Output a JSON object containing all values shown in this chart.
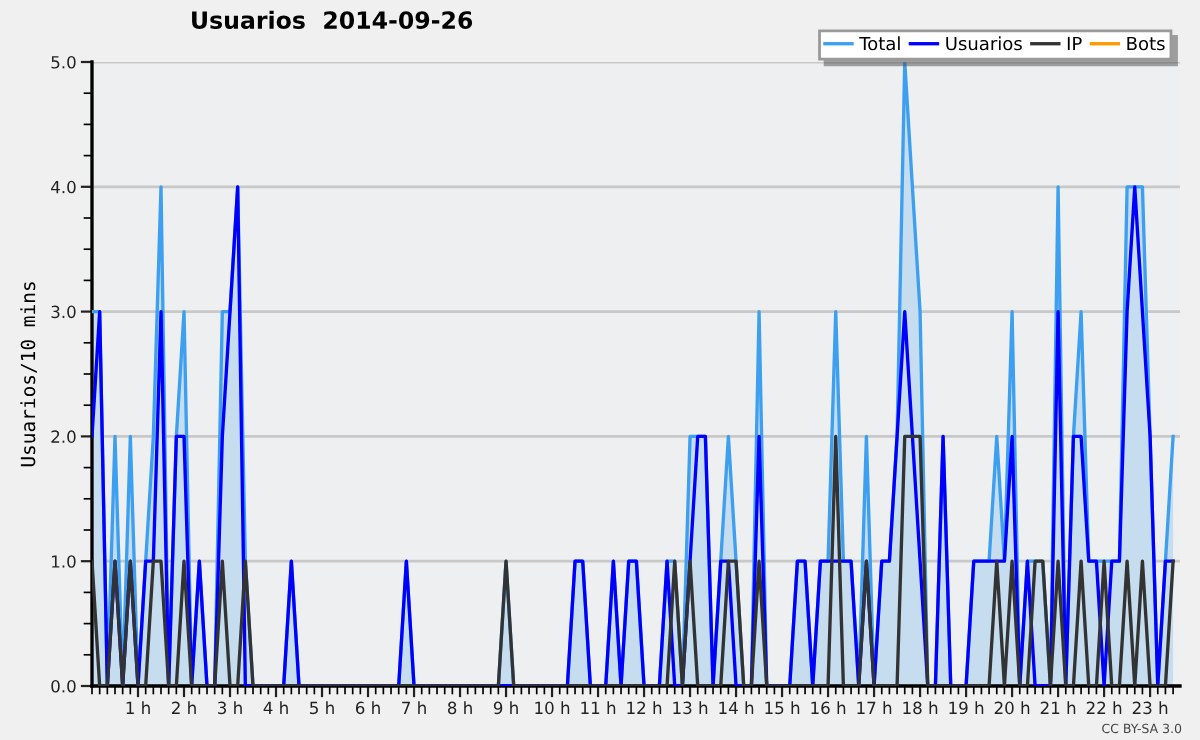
{
  "chart_data": {
    "type": "line",
    "title": "Usuarios  2014-09-26",
    "ylabel": "Usuarios/10 mins",
    "x": [
      0,
      0.1667,
      0.3333,
      0.5,
      0.6667,
      0.8333,
      1,
      1.1667,
      1.3333,
      1.5,
      1.6667,
      1.8333,
      2,
      2.1667,
      2.3333,
      2.5,
      2.6667,
      2.8333,
      3,
      3.1667,
      3.3333,
      3.5,
      3.6667,
      3.8333,
      4,
      4.1667,
      4.3333,
      4.5,
      4.6667,
      4.8333,
      5,
      5.1667,
      5.3333,
      5.5,
      5.6667,
      5.8333,
      6,
      6.1667,
      6.3333,
      6.5,
      6.6667,
      6.8333,
      7,
      7.1667,
      7.3333,
      7.5,
      7.6667,
      7.8333,
      8,
      8.1667,
      8.3333,
      8.5,
      8.6667,
      8.8333,
      9,
      9.1667,
      9.3333,
      9.5,
      9.6667,
      9.8333,
      10,
      10.1667,
      10.3333,
      10.5,
      10.6667,
      10.8333,
      11,
      11.1667,
      11.3333,
      11.5,
      11.6667,
      11.8333,
      12,
      12.1667,
      12.3333,
      12.5,
      12.6667,
      12.8333,
      13,
      13.1667,
      13.3333,
      13.5,
      13.6667,
      13.8333,
      14,
      14.1667,
      14.3333,
      14.5,
      14.6667,
      14.8333,
      15,
      15.1667,
      15.3333,
      15.5,
      15.6667,
      15.8333,
      16,
      16.1667,
      16.3333,
      16.5,
      16.6667,
      16.8333,
      17,
      17.1667,
      17.3333,
      17.5,
      17.6667,
      17.8333,
      18,
      18.1667,
      18.3333,
      18.5,
      18.6667,
      18.8333,
      19,
      19.1667,
      19.3333,
      19.5,
      19.6667,
      19.8333,
      20,
      20.1667,
      20.3333,
      20.5,
      20.6667,
      20.8333,
      21,
      21.1667,
      21.3333,
      21.5,
      21.6667,
      21.8333,
      22,
      22.1667,
      22.3333,
      22.5,
      22.6667,
      22.8333,
      23,
      23.1667,
      23.3333,
      23.5
    ],
    "series": [
      {
        "name": "Bots",
        "color": "#ff9900",
        "values": [
          null,
          null,
          null,
          null,
          null,
          null,
          null,
          null,
          null,
          null,
          null,
          null,
          null,
          null,
          null,
          null,
          null,
          null,
          null,
          null,
          null,
          null,
          null,
          null,
          null,
          null,
          null,
          null,
          null,
          null,
          null,
          null,
          null,
          null,
          null,
          null,
          null,
          null,
          null,
          null,
          null,
          null,
          null,
          null,
          null,
          null,
          null,
          null,
          null,
          null,
          null,
          null,
          null,
          null,
          null,
          null,
          null,
          null,
          null,
          null,
          null,
          null,
          null,
          null,
          null,
          null,
          null,
          null,
          null,
          null,
          null,
          null,
          null,
          null,
          null,
          null,
          null,
          null,
          null,
          null,
          null,
          null,
          null,
          null,
          null,
          null,
          null,
          null,
          null,
          null,
          null,
          null,
          null,
          null,
          null,
          null,
          null,
          null,
          null,
          null,
          null,
          null,
          null,
          null,
          null,
          null,
          null,
          null,
          null,
          null,
          null,
          null,
          null,
          null,
          null,
          null,
          null,
          null,
          null,
          null,
          null,
          null,
          null,
          null,
          null,
          null,
          null,
          null,
          null,
          null,
          null,
          null,
          null,
          null,
          null,
          null,
          null,
          null,
          null,
          null,
          null,
          null
        ]
      },
      {
        "name": "Total",
        "type": "area",
        "color": "#3d9ff0",
        "values": [
          3,
          3,
          0,
          2,
          0,
          2,
          0,
          1,
          2,
          4,
          0,
          2,
          3,
          0,
          1,
          0,
          0,
          3,
          3,
          4,
          1,
          0,
          0,
          0,
          0,
          0,
          1,
          0,
          0,
          0,
          0,
          0,
          0,
          0,
          0,
          0,
          0,
          0,
          0,
          0,
          0,
          1,
          0,
          0,
          0,
          0,
          0,
          0,
          0,
          0,
          0,
          0,
          0,
          0,
          1,
          0,
          0,
          0,
          0,
          0,
          0,
          0,
          0,
          1,
          1,
          0,
          0,
          0,
          1,
          0,
          1,
          1,
          0,
          0,
          0,
          1,
          1,
          0,
          2,
          2,
          2,
          0,
          1,
          2,
          1,
          0,
          0,
          3,
          0,
          0,
          0,
          0,
          1,
          1,
          0,
          1,
          1,
          3,
          1,
          1,
          0,
          2,
          0,
          1,
          1,
          2,
          5,
          4,
          3,
          0,
          0,
          2,
          0,
          0,
          0,
          1,
          1,
          1,
          2,
          1,
          3,
          0,
          1,
          1,
          1,
          0,
          4,
          0,
          2,
          3,
          1,
          1,
          1,
          1,
          1,
          4,
          4,
          4,
          2,
          0,
          1,
          2
        ]
      },
      {
        "name": "Usuarios",
        "color": "#0000ff",
        "values": [
          2,
          3,
          0,
          1,
          0,
          1,
          0,
          1,
          1,
          3,
          0,
          2,
          2,
          0,
          1,
          0,
          0,
          2,
          3,
          4,
          0,
          0,
          0,
          0,
          0,
          0,
          1,
          0,
          0,
          0,
          0,
          0,
          0,
          0,
          0,
          0,
          0,
          0,
          0,
          0,
          0,
          1,
          0,
          0,
          0,
          0,
          0,
          0,
          0,
          0,
          0,
          0,
          0,
          0,
          0,
          0,
          0,
          0,
          0,
          0,
          0,
          0,
          0,
          1,
          1,
          0,
          0,
          0,
          1,
          0,
          1,
          1,
          0,
          0,
          0,
          1,
          0,
          0,
          1,
          2,
          2,
          0,
          1,
          1,
          0,
          0,
          0,
          2,
          0,
          0,
          0,
          0,
          1,
          1,
          0,
          1,
          1,
          1,
          1,
          1,
          0,
          1,
          0,
          1,
          1,
          2,
          3,
          2,
          1,
          0,
          0,
          2,
          0,
          0,
          0,
          1,
          1,
          1,
          1,
          1,
          2,
          0,
          1,
          0,
          0,
          0,
          3,
          0,
          2,
          2,
          1,
          1,
          0,
          1,
          1,
          3,
          4,
          3,
          2,
          0,
          1,
          1
        ]
      },
      {
        "name": "IP",
        "color": "#333333",
        "values": [
          1,
          0,
          0,
          1,
          0,
          1,
          0,
          0,
          1,
          1,
          0,
          0,
          1,
          0,
          0,
          0,
          0,
          1,
          0,
          0,
          1,
          0,
          0,
          0,
          0,
          0,
          0,
          0,
          0,
          0,
          0,
          0,
          0,
          0,
          0,
          0,
          0,
          0,
          0,
          0,
          0,
          0,
          0,
          0,
          0,
          0,
          0,
          0,
          0,
          0,
          0,
          0,
          0,
          0,
          1,
          0,
          0,
          0,
          0,
          0,
          0,
          0,
          0,
          0,
          0,
          0,
          0,
          0,
          0,
          0,
          0,
          0,
          0,
          0,
          0,
          0,
          1,
          0,
          1,
          0,
          0,
          0,
          0,
          1,
          1,
          0,
          0,
          1,
          0,
          0,
          0,
          0,
          0,
          0,
          0,
          0,
          0,
          2,
          0,
          0,
          0,
          1,
          0,
          0,
          0,
          0,
          2,
          2,
          2,
          0,
          0,
          0,
          0,
          0,
          0,
          0,
          0,
          0,
          1,
          0,
          1,
          0,
          0,
          1,
          1,
          0,
          1,
          0,
          0,
          1,
          0,
          0,
          1,
          0,
          0,
          1,
          0,
          1,
          0,
          0,
          0,
          1
        ]
      }
    ],
    "xlim": [
      0,
      23.65
    ],
    "xticks": [
      {
        "value": 1,
        "label": "1 h"
      },
      {
        "value": 2,
        "label": "2 h"
      },
      {
        "value": 3,
        "label": "3 h"
      },
      {
        "value": 4,
        "label": "4 h"
      },
      {
        "value": 5,
        "label": "5 h"
      },
      {
        "value": 6,
        "label": "6 h"
      },
      {
        "value": 7,
        "label": "7 h"
      },
      {
        "value": 8,
        "label": "8 h"
      },
      {
        "value": 9,
        "label": "9 h"
      },
      {
        "value": 10,
        "label": "10 h"
      },
      {
        "value": 11,
        "label": "11 h"
      },
      {
        "value": 12,
        "label": "12 h"
      },
      {
        "value": 13,
        "label": "13 h"
      },
      {
        "value": 14,
        "label": "14 h"
      },
      {
        "value": 15,
        "label": "15 h"
      },
      {
        "value": 16,
        "label": "16 h"
      },
      {
        "value": 17,
        "label": "17 h"
      },
      {
        "value": 18,
        "label": "18 h"
      },
      {
        "value": 19,
        "label": "19 h"
      },
      {
        "value": 20,
        "label": "20 h"
      },
      {
        "value": 21,
        "label": "21 h"
      },
      {
        "value": 22,
        "label": "22 h"
      },
      {
        "value": 23,
        "label": "23 h"
      }
    ],
    "ylim": [
      0,
      5
    ],
    "yticks": [
      {
        "value": 0,
        "label": "0.0"
      },
      {
        "value": 1,
        "label": "1.0"
      },
      {
        "value": 2,
        "label": "2.0"
      },
      {
        "value": 3,
        "label": "3.0"
      },
      {
        "value": 4,
        "label": "4.0"
      },
      {
        "value": 5,
        "label": "5.0"
      }
    ],
    "grid": "y",
    "legend": "top right",
    "marker": "none",
    "line_style": "solid",
    "annotations": [
      "CC BY-SA 3.0"
    ]
  }
}
